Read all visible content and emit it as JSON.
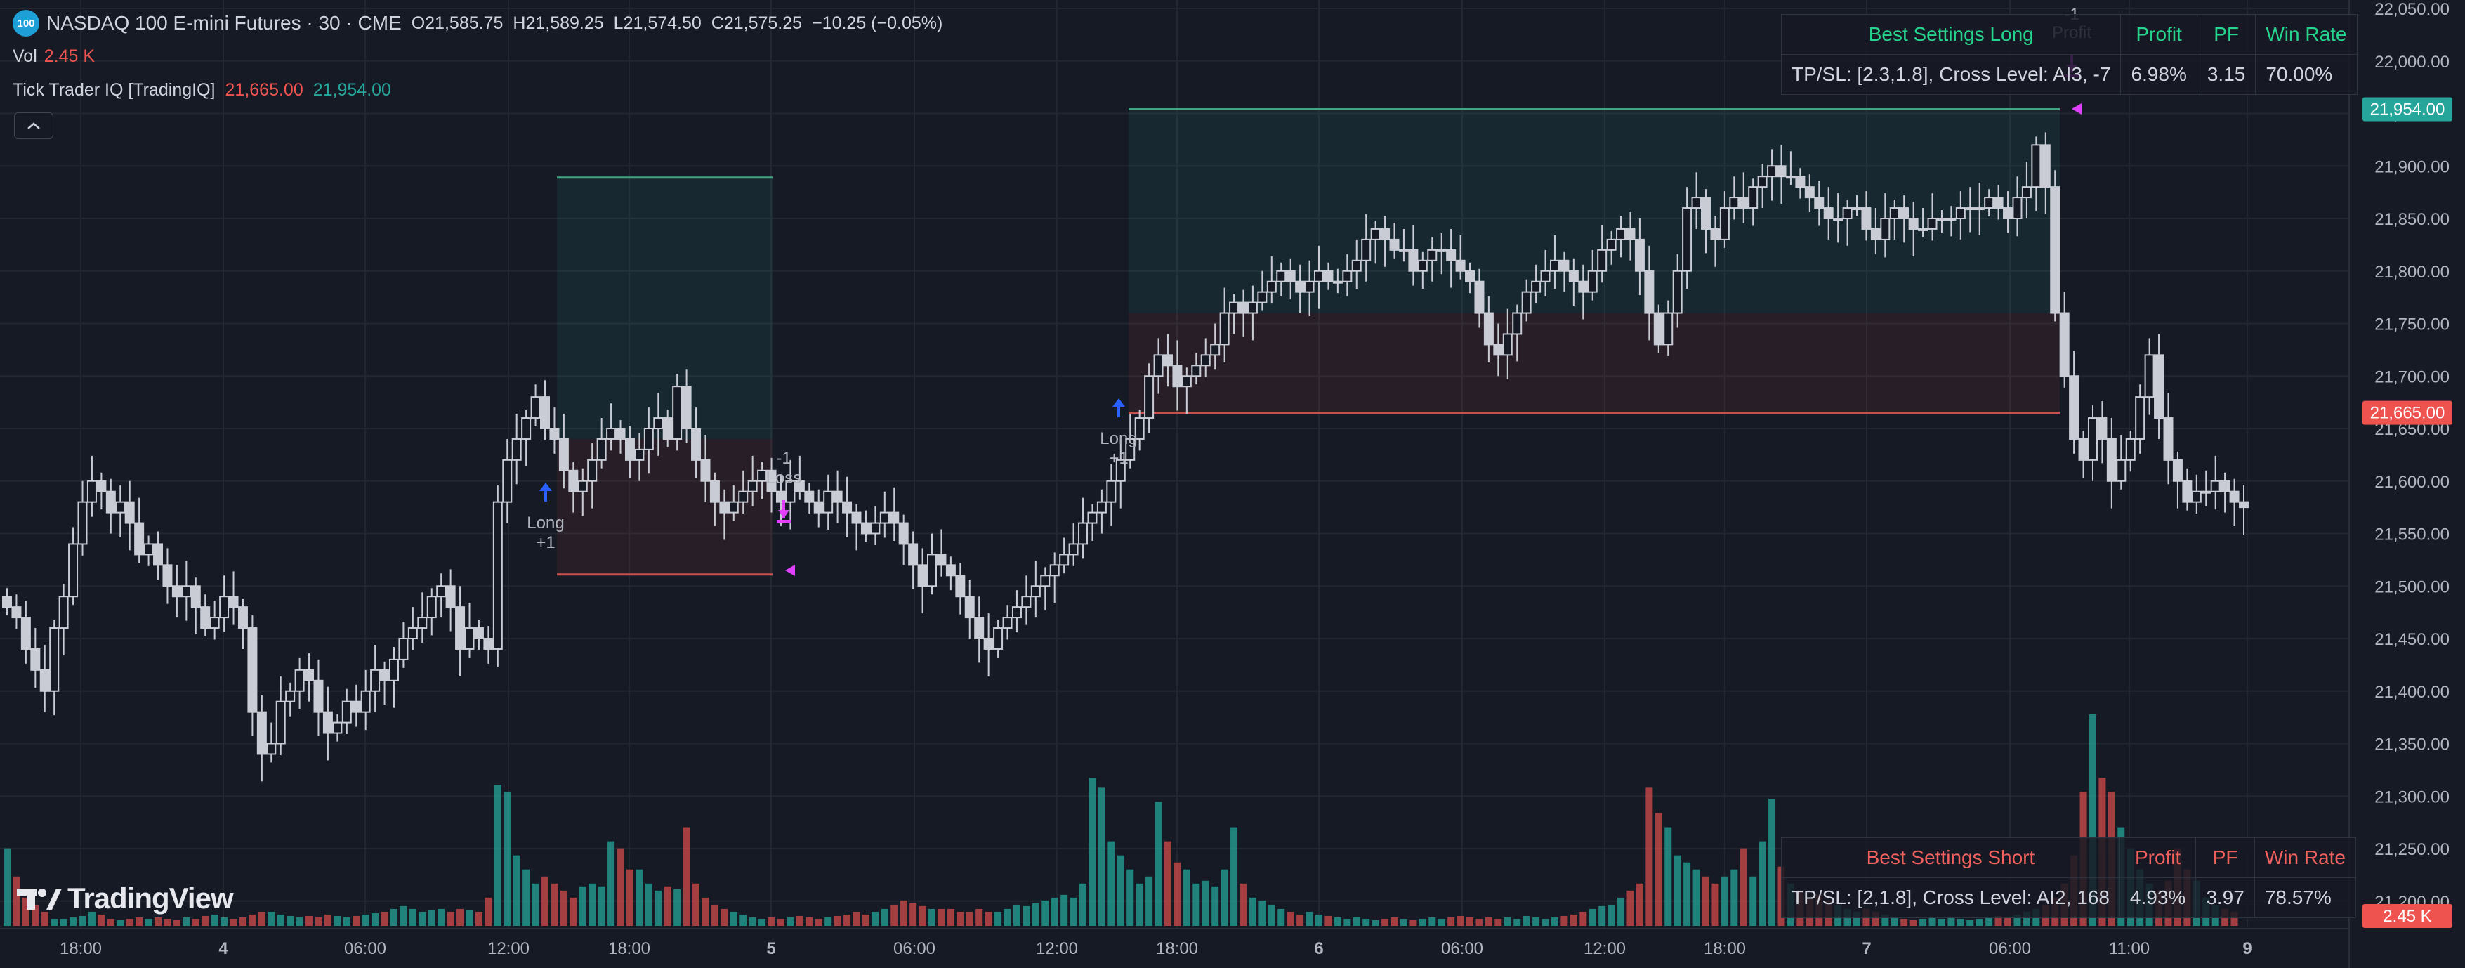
{
  "symbol": {
    "badge": "100",
    "title": "NASDAQ 100 E-mini Futures · 30 · CME",
    "ohlc": {
      "o_label": "O",
      "o": "21,585.75",
      "h_label": "H",
      "h": "21,589.25",
      "l_label": "L",
      "l": "21,574.50",
      "c_label": "C",
      "c": "21,575.25",
      "change": "−10.25 (−0.05%)"
    }
  },
  "legend": {
    "vol_label": "Vol",
    "vol_value": "2.45 K",
    "indicator_label": "Tick Trader IQ [TradingIQ]",
    "indicator_value_1": "21,665.00",
    "indicator_value_2": "21,954.00"
  },
  "price_axis": {
    "labels": [
      "22,050.00",
      "22,000.00",
      "21,950.00",
      "21,900.00",
      "21,850.00",
      "21,800.00",
      "21,750.00",
      "21,700.00",
      "21,650.00",
      "21,600.00",
      "21,550.00",
      "21,500.00",
      "21,450.00",
      "21,400.00",
      "21,350.00",
      "21,300.00",
      "21,250.00",
      "21,200.00"
    ],
    "tag_green": "21,954.00",
    "tag_red": "21,665.00",
    "tag_vol": "2.45 K"
  },
  "time_axis": [
    "18:00",
    "4",
    "06:00",
    "12:00",
    "18:00",
    "5",
    "06:00",
    "12:00",
    "18:00",
    "6",
    "06:00",
    "12:00",
    "18:00",
    "7",
    "06:00",
    "11:00",
    "9"
  ],
  "trades": [
    {
      "label": "Long",
      "qty": "+1"
    },
    {
      "label": "-1",
      "result": "Loss"
    },
    {
      "label": "Long",
      "qty": "+1"
    },
    {
      "label": "-1",
      "result": "Profit"
    }
  ],
  "table_long": {
    "header": [
      "Best Settings Long",
      "Profit",
      "PF",
      "Win Rate"
    ],
    "row": [
      "TP/SL: [2.3,1.8], Cross Level: AI3, -7",
      "6.98%",
      "3.15",
      "70.00%"
    ]
  },
  "table_short": {
    "header": [
      "Best Settings Short",
      "Profit",
      "PF",
      "Win Rate"
    ],
    "row": [
      "TP/SL: [2,1.8], Cross Level: AI2, 168",
      "4.93%",
      "3.97",
      "78.57%"
    ]
  },
  "logo_text": "TradingView",
  "colors": {
    "bg": "#161a25",
    "up": "#26a69a",
    "down": "#ef5350",
    "long_green": "#26a69a",
    "arrow_blue": "#2962ff",
    "exit_magenta": "#e040fb",
    "candle": "#c9ccd4"
  },
  "chart_data": {
    "type": "candlestick",
    "ylim": [
      21150,
      22060
    ],
    "closes": [
      21480,
      21470,
      21440,
      21420,
      21400,
      21460,
      21490,
      21540,
      21580,
      21600,
      21590,
      21570,
      21580,
      21560,
      21530,
      21540,
      21520,
      21500,
      21490,
      21500,
      21480,
      21460,
      21470,
      21490,
      21480,
      21460,
      21380,
      21340,
      21350,
      21390,
      21400,
      21420,
      21410,
      21380,
      21360,
      21370,
      21390,
      21380,
      21400,
      21420,
      21410,
      21430,
      21450,
      21460,
      21470,
      21490,
      21500,
      21480,
      21440,
      21460,
      21450,
      21440,
      21580,
      21620,
      21640,
      21660,
      21680,
      21650,
      21640,
      21610,
      21590,
      21600,
      21620,
      21640,
      21650,
      21640,
      21620,
      21630,
      21650,
      21660,
      21640,
      21690,
      21650,
      21620,
      21600,
      21580,
      21570,
      21580,
      21590,
      21600,
      21610,
      21590,
      21580,
      21600,
      21590,
      21580,
      21570,
      21590,
      21580,
      21570,
      21560,
      21550,
      21560,
      21570,
      21560,
      21540,
      21520,
      21500,
      21530,
      21520,
      21510,
      21490,
      21470,
      21450,
      21440,
      21460,
      21470,
      21480,
      21490,
      21500,
      21510,
      21520,
      21530,
      21540,
      21560,
      21570,
      21580,
      21600,
      21620,
      21640,
      21660,
      21700,
      21720,
      21710,
      21690,
      21700,
      21710,
      21720,
      21730,
      21760,
      21770,
      21760,
      21770,
      21780,
      21790,
      21800,
      21790,
      21780,
      21790,
      21800,
      21790,
      21790,
      21800,
      21810,
      21830,
      21840,
      21830,
      21820,
      21820,
      21800,
      21810,
      21820,
      21820,
      21810,
      21800,
      21790,
      21760,
      21730,
      21720,
      21740,
      21760,
      21780,
      21790,
      21800,
      21810,
      21800,
      21790,
      21780,
      21800,
      21820,
      21830,
      21840,
      21830,
      21800,
      21760,
      21730,
      21760,
      21800,
      21860,
      21870,
      21840,
      21830,
      21860,
      21870,
      21860,
      21880,
      21890,
      21900,
      21890,
      21890,
      21880,
      21870,
      21860,
      21850,
      21850,
      21860,
      21860,
      21840,
      21830,
      21850,
      21860,
      21850,
      21840,
      21840,
      21850,
      21850,
      21850,
      21860,
      21860,
      21860,
      21870,
      21860,
      21850,
      21870,
      21880,
      21920,
      21880,
      21760,
      21700,
      21640,
      21620,
      21660,
      21640,
      21600,
      21620,
      21640,
      21680,
      21720,
      21660,
      21620,
      21600,
      21580,
      21590,
      21590,
      21600,
      21590,
      21580,
      21575
    ],
    "volumes": [
      0.55,
      0.35,
      0.2,
      0.15,
      0.1,
      0.05,
      0.05,
      0.06,
      0.07,
      0.1,
      0.08,
      0.05,
      0.04,
      0.05,
      0.06,
      0.05,
      0.06,
      0.05,
      0.04,
      0.06,
      0.05,
      0.07,
      0.08,
      0.06,
      0.05,
      0.06,
      0.08,
      0.1,
      0.1,
      0.08,
      0.07,
      0.06,
      0.07,
      0.06,
      0.08,
      0.07,
      0.06,
      0.07,
      0.08,
      0.09,
      0.1,
      0.12,
      0.14,
      0.12,
      0.1,
      0.11,
      0.12,
      0.1,
      0.12,
      0.11,
      0.1,
      0.2,
      1.0,
      0.95,
      0.5,
      0.4,
      0.3,
      0.35,
      0.3,
      0.25,
      0.2,
      0.28,
      0.3,
      0.28,
      0.6,
      0.55,
      0.4,
      0.4,
      0.3,
      0.25,
      0.28,
      0.26,
      0.7,
      0.3,
      0.2,
      0.15,
      0.12,
      0.1,
      0.08,
      0.06,
      0.05,
      0.06,
      0.05,
      0.06,
      0.07,
      0.06,
      0.05,
      0.06,
      0.07,
      0.08,
      0.1,
      0.08,
      0.1,
      0.12,
      0.15,
      0.18,
      0.16,
      0.14,
      0.12,
      0.12,
      0.12,
      0.1,
      0.1,
      0.12,
      0.1,
      0.1,
      0.12,
      0.15,
      0.14,
      0.16,
      0.18,
      0.2,
      0.22,
      0.2,
      0.3,
      1.05,
      0.98,
      0.6,
      0.5,
      0.4,
      0.3,
      0.35,
      0.88,
      0.6,
      0.45,
      0.4,
      0.3,
      0.32,
      0.28,
      0.4,
      0.7,
      0.3,
      0.2,
      0.18,
      0.15,
      0.12,
      0.1,
      0.08,
      0.1,
      0.08,
      0.07,
      0.06,
      0.05,
      0.06,
      0.05,
      0.04,
      0.05,
      0.06,
      0.05,
      0.04,
      0.05,
      0.06,
      0.05,
      0.06,
      0.07,
      0.06,
      0.05,
      0.06,
      0.05,
      0.06,
      0.05,
      0.07,
      0.06,
      0.05,
      0.06,
      0.07,
      0.08,
      0.1,
      0.12,
      0.14,
      0.15,
      0.2,
      0.25,
      0.3,
      0.98,
      0.8,
      0.7,
      0.5,
      0.45,
      0.4,
      0.35,
      0.3,
      0.35,
      0.4,
      0.55,
      0.35,
      0.6,
      0.9,
      0.42,
      0.3,
      0.25,
      0.2,
      0.22,
      0.18,
      0.15,
      0.12,
      0.1,
      0.12,
      0.1,
      0.08,
      0.06,
      0.05,
      0.04,
      0.05,
      0.06,
      0.05,
      0.06,
      0.05,
      0.04,
      0.05,
      0.06,
      0.07,
      0.06,
      0.08,
      0.1,
      0.12,
      0.15,
      0.2,
      0.3,
      0.5,
      0.95,
      1.5,
      1.05,
      0.95,
      0.7,
      0.55,
      0.4,
      0.3,
      0.25,
      0.32,
      0.55,
      0.4,
      0.32,
      0.2,
      0.15,
      0.12,
      0.1
    ]
  }
}
